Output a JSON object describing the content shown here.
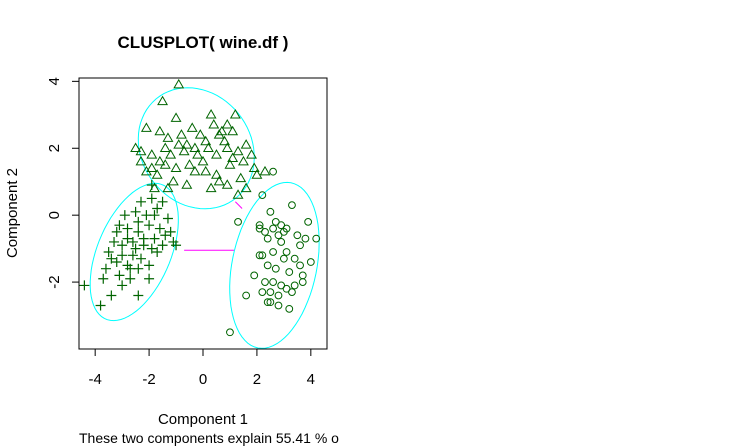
{
  "chart_data": {
    "type": "scatter",
    "title": "CLUSPLOT( wine.df )",
    "xlabel": "Component 1",
    "ylabel": "Component 2",
    "subtitle": "These two components explain 55.41 % o",
    "xlim": [
      -4.6,
      4.6
    ],
    "ylim": [
      -4.0,
      4.1
    ],
    "xticks": [
      -4,
      -2,
      0,
      2,
      4
    ],
    "yticks": [
      -2,
      0,
      2,
      4
    ],
    "grid": false,
    "colors": {
      "points": "#006400",
      "ellipse": "#00ffff",
      "line": "#ff00ff",
      "axes": "#000000"
    },
    "series": [
      {
        "marker": "triangle",
        "points": [
          [
            -0.9,
            3.9
          ],
          [
            -1.5,
            3.4
          ],
          [
            -1.0,
            2.9
          ],
          [
            0.3,
            3.0
          ],
          [
            1.2,
            3.0
          ],
          [
            -2.1,
            2.6
          ],
          [
            -1.6,
            2.5
          ],
          [
            -1.3,
            2.3
          ],
          [
            -0.8,
            2.4
          ],
          [
            -0.6,
            2.1
          ],
          [
            -0.1,
            2.4
          ],
          [
            0.1,
            2.2
          ],
          [
            0.6,
            2.4
          ],
          [
            0.9,
            2.7
          ],
          [
            1.1,
            2.5
          ],
          [
            -2.5,
            2.0
          ],
          [
            -2.3,
            1.9
          ],
          [
            -1.9,
            1.8
          ],
          [
            -1.6,
            1.6
          ],
          [
            -1.2,
            1.8
          ],
          [
            -0.7,
            1.9
          ],
          [
            -0.3,
            2.0
          ],
          [
            0.2,
            2.0
          ],
          [
            0.5,
            1.8
          ],
          [
            0.9,
            2.0
          ],
          [
            1.3,
            1.9
          ],
          [
            1.6,
            2.1
          ],
          [
            1.8,
            1.8
          ],
          [
            -2.3,
            1.6
          ],
          [
            -1.9,
            1.4
          ],
          [
            -1.4,
            1.5
          ],
          [
            -1.0,
            1.4
          ],
          [
            -0.5,
            1.5
          ],
          [
            0.1,
            1.3
          ],
          [
            0.5,
            1.2
          ],
          [
            1.0,
            1.5
          ],
          [
            1.5,
            1.6
          ],
          [
            1.9,
            1.4
          ],
          [
            -1.7,
            1.2
          ],
          [
            -1.1,
            1.0
          ],
          [
            -0.3,
            1.3
          ],
          [
            0.6,
            1.0
          ],
          [
            1.4,
            1.1
          ],
          [
            2.0,
            1.2
          ],
          [
            -1.8,
            0.8
          ],
          [
            -1.3,
            0.8
          ],
          [
            -0.6,
            0.9
          ],
          [
            0.3,
            0.8
          ],
          [
            0.9,
            0.9
          ],
          [
            1.6,
            0.8
          ],
          [
            1.3,
            0.6
          ],
          [
            -2.1,
            1.3
          ],
          [
            0.8,
            2.2
          ],
          [
            2.3,
            1.3
          ],
          [
            0.0,
            1.6
          ],
          [
            -0.9,
            2.1
          ],
          [
            0.7,
            2.5
          ],
          [
            -0.4,
            2.6
          ],
          [
            1.1,
            1.7
          ],
          [
            -1.4,
            2.0
          ],
          [
            0.4,
            2.7
          ],
          [
            -0.2,
            1.8
          ]
        ]
      },
      {
        "marker": "plus",
        "points": [
          [
            -4.4,
            -2.1
          ],
          [
            -3.8,
            -2.7
          ],
          [
            -3.4,
            -2.4
          ],
          [
            -3.0,
            -2.1
          ],
          [
            -2.4,
            -2.4
          ],
          [
            -3.6,
            -1.6
          ],
          [
            -3.2,
            -1.4
          ],
          [
            -2.8,
            -1.5
          ],
          [
            -2.4,
            -1.6
          ],
          [
            -2.0,
            -1.5
          ],
          [
            -3.5,
            -1.1
          ],
          [
            -3.0,
            -0.9
          ],
          [
            -2.6,
            -0.8
          ],
          [
            -2.2,
            -0.9
          ],
          [
            -1.8,
            -0.7
          ],
          [
            -1.4,
            -0.6
          ],
          [
            -1.1,
            -0.8
          ],
          [
            -3.2,
            -0.5
          ],
          [
            -2.8,
            -0.4
          ],
          [
            -2.4,
            -0.5
          ],
          [
            -2.0,
            -0.3
          ],
          [
            -1.6,
            -0.4
          ],
          [
            -1.2,
            -0.5
          ],
          [
            -2.9,
            0.0
          ],
          [
            -2.5,
            0.1
          ],
          [
            -2.1,
            0.0
          ],
          [
            -1.7,
            0.2
          ],
          [
            -1.3,
            -0.1
          ],
          [
            -2.3,
            0.4
          ],
          [
            -1.9,
            0.5
          ],
          [
            -1.5,
            0.4
          ],
          [
            -1.9,
            0.9
          ],
          [
            -2.6,
            -1.2
          ],
          [
            -3.1,
            -1.8
          ],
          [
            -2.7,
            -1.9
          ],
          [
            -2.3,
            -1.3
          ],
          [
            -3.3,
            -0.8
          ],
          [
            -1.9,
            -1.0
          ],
          [
            -2.8,
            -0.7
          ],
          [
            -3.4,
            -1.3
          ],
          [
            -2.2,
            -0.7
          ],
          [
            -2.0,
            -1.9
          ],
          [
            -3.0,
            -1.2
          ],
          [
            -2.5,
            -1.0
          ],
          [
            -1.7,
            -1.1
          ],
          [
            -3.7,
            -1.9
          ],
          [
            -1.0,
            -0.9
          ],
          [
            -1.5,
            -0.9
          ],
          [
            -2.4,
            -0.2
          ],
          [
            -3.1,
            -0.3
          ],
          [
            -2.7,
            -1.6
          ],
          [
            -1.8,
            0.0
          ]
        ]
      },
      {
        "marker": "circle",
        "points": [
          [
            2.6,
            1.3
          ],
          [
            2.2,
            0.6
          ],
          [
            3.3,
            0.3
          ],
          [
            2.5,
            0.1
          ],
          [
            3.9,
            -0.2
          ],
          [
            1.3,
            -0.2
          ],
          [
            2.1,
            -0.4
          ],
          [
            2.6,
            -0.4
          ],
          [
            3.0,
            -0.5
          ],
          [
            3.5,
            -0.6
          ],
          [
            4.2,
            -0.7
          ],
          [
            2.4,
            -0.7
          ],
          [
            2.9,
            -0.8
          ],
          [
            3.6,
            -0.9
          ],
          [
            3.8,
            -0.7
          ],
          [
            2.2,
            -1.2
          ],
          [
            2.6,
            -1.1
          ],
          [
            3.1,
            -1.1
          ],
          [
            3.4,
            -1.3
          ],
          [
            4.0,
            -1.4
          ],
          [
            2.7,
            -1.6
          ],
          [
            3.2,
            -1.7
          ],
          [
            3.7,
            -1.8
          ],
          [
            2.3,
            -2.0
          ],
          [
            2.6,
            -2.0
          ],
          [
            2.9,
            -2.1
          ],
          [
            3.1,
            -2.2
          ],
          [
            3.4,
            -2.1
          ],
          [
            2.2,
            -2.3
          ],
          [
            2.5,
            -2.3
          ],
          [
            2.8,
            -2.4
          ],
          [
            3.3,
            -2.3
          ],
          [
            1.6,
            -2.4
          ],
          [
            2.4,
            -2.6
          ],
          [
            2.5,
            -2.6
          ],
          [
            2.8,
            -2.7
          ],
          [
            3.2,
            -2.8
          ],
          [
            1.0,
            -3.5
          ],
          [
            1.9,
            -1.8
          ],
          [
            2.1,
            -0.3
          ],
          [
            3.1,
            -0.4
          ],
          [
            2.8,
            -0.6
          ],
          [
            3.0,
            -1.3
          ],
          [
            3.6,
            -1.5
          ],
          [
            2.4,
            -1.5
          ],
          [
            2.1,
            -1.2
          ],
          [
            3.7,
            -2.0
          ],
          [
            2.9,
            -0.3
          ],
          [
            2.7,
            -0.2
          ],
          [
            2.3,
            -0.5
          ]
        ]
      }
    ],
    "ellipses": [
      {
        "cx": -0.25,
        "cy": 2.0,
        "a": 2.2,
        "b": 1.75,
        "angle": -20
      },
      {
        "cx": -2.55,
        "cy": -1.1,
        "a": 2.28,
        "b": 1.3,
        "angle": 58
      },
      {
        "cx": 2.65,
        "cy": -1.5,
        "a": 2.55,
        "b": 1.55,
        "angle": 73
      }
    ],
    "connectors": [
      {
        "from": [
          -0.7,
          -1.05
        ],
        "to": [
          1.15,
          -1.05
        ]
      },
      {
        "from": [
          1.2,
          0.4
        ],
        "to": [
          1.45,
          0.2
        ]
      }
    ]
  }
}
